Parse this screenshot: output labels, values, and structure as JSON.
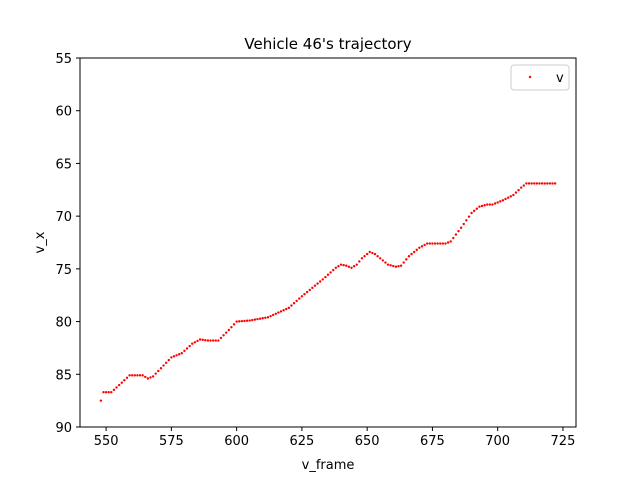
{
  "chart_data": {
    "type": "scatter",
    "title": "Vehicle 46's trajectory",
    "xlabel": "v_frame",
    "ylabel": "v_x",
    "xlim": [
      540,
      730
    ],
    "ylim": [
      90,
      55
    ],
    "y_inverted": true,
    "xticks": [
      550,
      575,
      600,
      625,
      650,
      675,
      700,
      725
    ],
    "yticks": [
      55,
      60,
      65,
      70,
      75,
      80,
      85,
      90
    ],
    "grid": false,
    "legend": {
      "position": "top-right",
      "entries": [
        "v"
      ]
    },
    "series": [
      {
        "name": "v",
        "color": "#ff0000",
        "marker": "point",
        "keypoints": [
          [
            548,
            87.5
          ],
          [
            549,
            86.7
          ],
          [
            552,
            86.7
          ],
          [
            556,
            85.8
          ],
          [
            559,
            85.1
          ],
          [
            564,
            85.1
          ],
          [
            566,
            85.4
          ],
          [
            568,
            85.2
          ],
          [
            575,
            83.4
          ],
          [
            579,
            83.0
          ],
          [
            583,
            82.1
          ],
          [
            586,
            81.7
          ],
          [
            589,
            81.8
          ],
          [
            593,
            81.8
          ],
          [
            597,
            80.8
          ],
          [
            600,
            80.0
          ],
          [
            605,
            79.9
          ],
          [
            612,
            79.6
          ],
          [
            620,
            78.7
          ],
          [
            625,
            77.6
          ],
          [
            633,
            76.0
          ],
          [
            638,
            74.9
          ],
          [
            640,
            74.6
          ],
          [
            642,
            74.7
          ],
          [
            644,
            74.9
          ],
          [
            646,
            74.6
          ],
          [
            648,
            74.0
          ],
          [
            651,
            73.4
          ],
          [
            653,
            73.6
          ],
          [
            658,
            74.6
          ],
          [
            661,
            74.8
          ],
          [
            663,
            74.7
          ],
          [
            666,
            73.8
          ],
          [
            670,
            73.0
          ],
          [
            673,
            72.6
          ],
          [
            680,
            72.6
          ],
          [
            682,
            72.4
          ],
          [
            686,
            71.1
          ],
          [
            690,
            69.7
          ],
          [
            693,
            69.1
          ],
          [
            696,
            68.9
          ],
          [
            698,
            68.9
          ],
          [
            702,
            68.5
          ],
          [
            706,
            68.0
          ],
          [
            709,
            67.3
          ],
          [
            711,
            66.9
          ],
          [
            722,
            66.9
          ]
        ]
      }
    ]
  }
}
